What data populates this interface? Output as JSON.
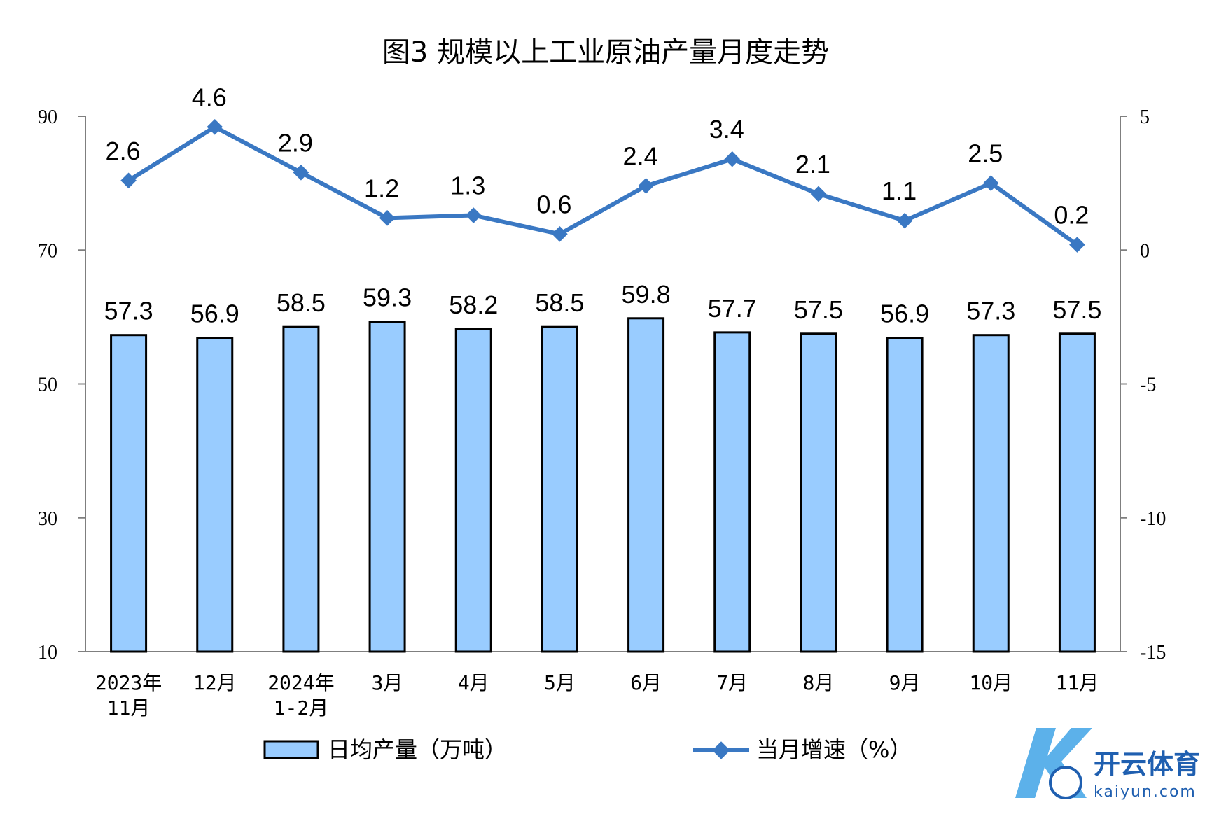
{
  "chart_data": {
    "type": "bar",
    "title": "图3  规模以上工业原油产量月度走势",
    "categories": [
      [
        "2023年",
        "11月"
      ],
      [
        "12月"
      ],
      [
        "2024年",
        "1-2月"
      ],
      [
        "3月"
      ],
      [
        "4月"
      ],
      [
        "5月"
      ],
      [
        "6月"
      ],
      [
        "7月"
      ],
      [
        "8月"
      ],
      [
        "9月"
      ],
      [
        "10月"
      ],
      [
        "11月"
      ]
    ],
    "series": [
      {
        "name": "日均产量（万吨）",
        "type": "bar",
        "axis": "left",
        "color": "#99ccff",
        "values": [
          57.3,
          56.9,
          58.5,
          59.3,
          58.2,
          58.5,
          59.8,
          57.7,
          57.5,
          56.9,
          57.3,
          57.5
        ],
        "labels": [
          "57.3",
          "56.9",
          "58.5",
          "59.3",
          "58.2",
          "58.5",
          "59.8",
          "57.7",
          "57.5",
          "56.9",
          "57.3",
          "57.5"
        ]
      },
      {
        "name": "当月增速（%）",
        "type": "line",
        "axis": "right",
        "color": "#3a78c3",
        "values": [
          2.6,
          4.6,
          2.9,
          1.2,
          1.3,
          0.6,
          2.4,
          3.4,
          2.1,
          1.1,
          2.5,
          0.2
        ],
        "labels": [
          "2.6",
          "4.6",
          "2.9",
          "1.2",
          "1.3",
          "0.6",
          "2.4",
          "3.4",
          "2.1",
          "1.1",
          "2.5",
          "0.2"
        ]
      }
    ],
    "y_left": {
      "min": 10,
      "max": 90,
      "ticks": [
        "10",
        "30",
        "50",
        "70",
        "90"
      ]
    },
    "y_right": {
      "min": -15,
      "max": 5,
      "ticks": [
        "-15",
        "-10",
        "-5",
        "0",
        "5"
      ]
    },
    "grid": false,
    "legend_position": "bottom"
  },
  "watermark": {
    "brand": "开云体育",
    "site": "kaiyun.com"
  }
}
